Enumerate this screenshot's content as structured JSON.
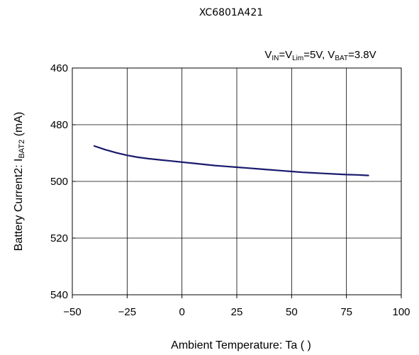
{
  "chart_data": {
    "type": "line",
    "title": "XC6801A421",
    "condition": {
      "v1_main": "V",
      "v1_sub": "IN",
      "eq1": "=V",
      "v2_sub": "Lim",
      "eq2": "=5V, V",
      "v3_sub": "BAT",
      "eq3": "=3.8V"
    },
    "xlabel": "Ambient Temperature: Ta (   )",
    "ylabel": {
      "main": "Battery Current2: I",
      "sub": "BAT2",
      "unit": " (mA)"
    },
    "xlim": [
      -50,
      100
    ],
    "ylim": [
      460,
      540
    ],
    "y_inverted": true,
    "xticks": [
      -50,
      -25,
      0,
      25,
      50,
      75,
      100
    ],
    "xtick_labels": [
      "−50",
      "−25",
      "0",
      "25",
      "50",
      "75",
      "100"
    ],
    "yticks": [
      460,
      480,
      500,
      520,
      540
    ],
    "ytick_labels": [
      "460",
      "480",
      "500",
      "520",
      "540"
    ],
    "grid": true,
    "series": [
      {
        "color": "#1a1a6e",
        "x": [
          -40,
          -35,
          -30,
          -25,
          -20,
          -15,
          -10,
          -5,
          0,
          5,
          10,
          15,
          20,
          25,
          30,
          35,
          40,
          45,
          50,
          55,
          60,
          65,
          70,
          75,
          80,
          85
        ],
        "y": [
          487.5,
          488.8,
          489.9,
          490.8,
          491.5,
          492.0,
          492.4,
          492.8,
          493.2,
          493.6,
          494.0,
          494.4,
          494.7,
          495.0,
          495.3,
          495.6,
          495.9,
          496.2,
          496.5,
          496.8,
          497.0,
          497.2,
          497.4,
          497.6,
          497.7,
          497.9
        ]
      }
    ]
  }
}
